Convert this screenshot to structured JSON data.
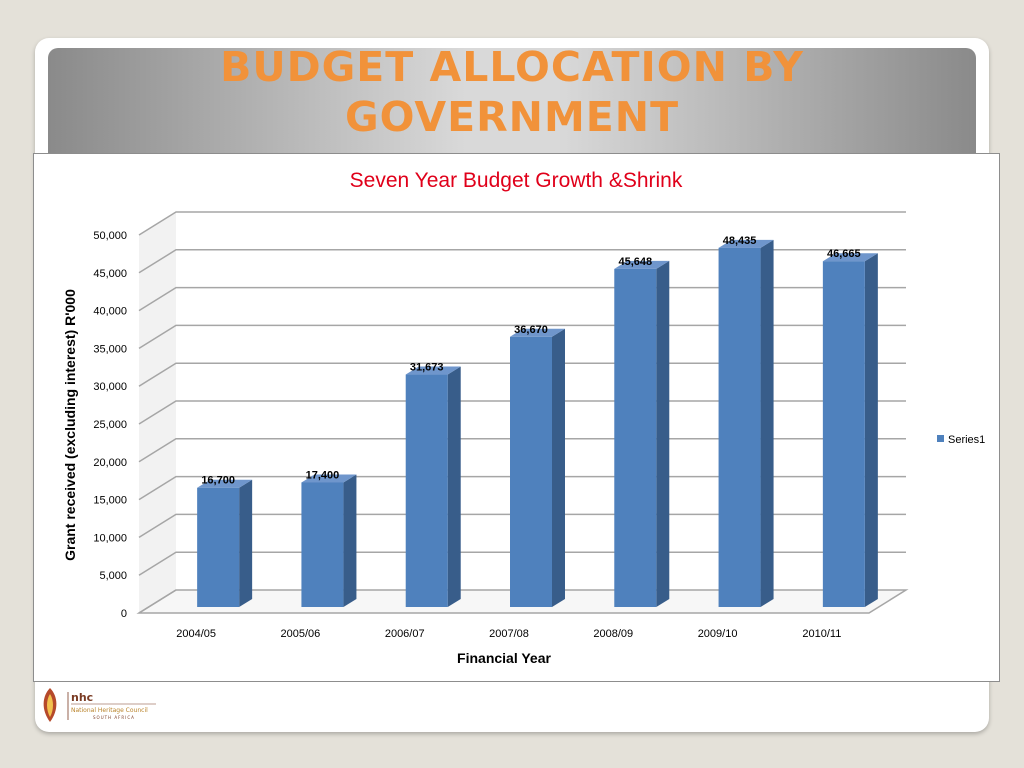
{
  "slide": {
    "title_line1": "BUDGET ALLOCATION BY",
    "title_line2": "GOVERNMENT"
  },
  "logo": {
    "abbr": "nhc",
    "name": "National Heritage Council",
    "country": "SOUTH AFRICA"
  },
  "colors": {
    "title": "#f1923a",
    "bar_front": "#4f81bd",
    "bar_side": "#385d8a",
    "chart_title": "#e0001a"
  },
  "chart_data": {
    "type": "bar",
    "title": "Seven Year Budget Growth &Shrink",
    "xlabel": "Financial Year",
    "ylabel": "Grant received (excluding interest) R'000",
    "categories": [
      "2004/05",
      "2005/06",
      "2006/07",
      "2007/08",
      "2008/09",
      "2009/10",
      "2010/11"
    ],
    "series": [
      {
        "name": "Series1",
        "values": [
          16700,
          17400,
          31673,
          36670,
          45648,
          48435,
          46665
        ],
        "labels": [
          "16,700",
          "17,400",
          "31,673",
          "36,670",
          "45,648",
          "48,435",
          "46,665"
        ]
      }
    ],
    "ylim": [
      0,
      50000
    ],
    "yticks": [
      "0",
      "5,000",
      "10,000",
      "15,000",
      "20,000",
      "25,000",
      "30,000",
      "35,000",
      "40,000",
      "45,000",
      "50,000"
    ],
    "grid": true,
    "legend": "right",
    "style": "3d"
  }
}
